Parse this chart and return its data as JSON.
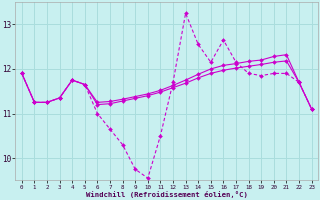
{
  "xlabel": "Windchill (Refroidissement éolien,°C)",
  "background_color": "#c8f0f0",
  "grid_color": "#aadddd",
  "line_color": "#cc00cc",
  "xlim": [
    -0.5,
    23.5
  ],
  "ylim": [
    9.5,
    13.5
  ],
  "yticks": [
    10,
    11,
    12,
    13
  ],
  "xticks": [
    0,
    1,
    2,
    3,
    4,
    5,
    6,
    7,
    8,
    9,
    10,
    11,
    12,
    13,
    14,
    15,
    16,
    17,
    18,
    19,
    20,
    21,
    22,
    23
  ],
  "s1_x": [
    0,
    1,
    2,
    3,
    4,
    5,
    6,
    7,
    8,
    9,
    10,
    11,
    12,
    13,
    14,
    15,
    16,
    17,
    18,
    19,
    20,
    21,
    22,
    23
  ],
  "s1_y": [
    11.9,
    11.25,
    11.25,
    11.35,
    11.75,
    11.65,
    11.0,
    10.65,
    10.3,
    9.75,
    9.55,
    10.5,
    11.7,
    13.25,
    12.55,
    12.15,
    12.65,
    12.15,
    11.9,
    11.85,
    11.9,
    11.9,
    11.7,
    11.1
  ],
  "s2_x": [
    0,
    1,
    2,
    3,
    4,
    5,
    6,
    7,
    8,
    9,
    10,
    11,
    12,
    13,
    14,
    15,
    16,
    17,
    18,
    19,
    20,
    21,
    22,
    23
  ],
  "s2_y": [
    11.9,
    11.25,
    11.25,
    11.35,
    11.75,
    11.65,
    11.25,
    11.27,
    11.32,
    11.38,
    11.44,
    11.52,
    11.63,
    11.75,
    11.88,
    12.0,
    12.08,
    12.12,
    12.17,
    12.2,
    12.28,
    12.32,
    11.7,
    11.1
  ],
  "s3_x": [
    0,
    1,
    2,
    3,
    4,
    5,
    6,
    7,
    8,
    9,
    10,
    11,
    12,
    13,
    14,
    15,
    16,
    17,
    18,
    19,
    20,
    21,
    22,
    23
  ],
  "s3_y": [
    11.9,
    11.25,
    11.25,
    11.35,
    11.75,
    11.65,
    11.2,
    11.22,
    11.28,
    11.34,
    11.4,
    11.48,
    11.58,
    11.68,
    11.8,
    11.9,
    11.97,
    12.02,
    12.06,
    12.1,
    12.15,
    12.18,
    11.7,
    11.1
  ]
}
